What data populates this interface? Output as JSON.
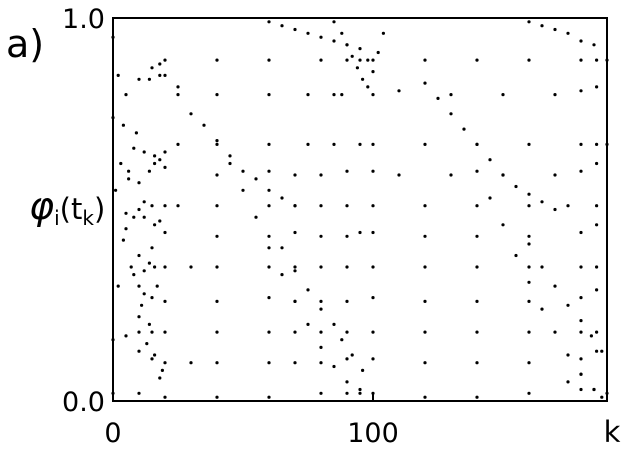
{
  "chart_data": {
    "type": "scatter",
    "panel_label": "a)",
    "title": "",
    "xlabel": "k",
    "ylabel": "φi(tk)",
    "ylabel_parts": {
      "symbol": "φ",
      "sub1": "i",
      "open": "(",
      "t": "t",
      "sub2": "k",
      "close": ")"
    },
    "xlim": [
      0,
      190
    ],
    "ylim": [
      0.0,
      1.0
    ],
    "x_ticks": [
      {
        "value": 0,
        "label": "0"
      },
      {
        "value": 100,
        "label": "100"
      }
    ],
    "y_ticks": [
      {
        "value": 0.0,
        "label": "0.0"
      },
      {
        "value": 1.0,
        "label": "1.0"
      }
    ],
    "grid": false,
    "marker_color": "#000000",
    "series": [
      {
        "x": [
          0,
          5,
          10,
          15,
          18,
          20,
          40,
          60,
          80,
          90,
          95,
          98,
          100,
          120,
          140,
          160,
          180,
          186,
          190
        ],
        "y": [
          0.74,
          0.8,
          0.84,
          0.87,
          0.88,
          0.89,
          0.89,
          0.89,
          0.89,
          0.89,
          0.89,
          0.89,
          0.89,
          0.89,
          0.89,
          0.89,
          0.89,
          0.89,
          0.89
        ]
      },
      {
        "x": [
          14,
          18,
          25,
          40,
          60,
          75,
          85,
          88,
          100,
          110,
          130,
          150,
          170,
          180,
          186
        ],
        "y": [
          0.84,
          0.85,
          0.82,
          0.8,
          0.8,
          0.8,
          0.8,
          0.8,
          0.8,
          0.81,
          0.8,
          0.8,
          0.8,
          0.81,
          0.82
        ]
      },
      {
        "x": [
          10,
          14,
          18,
          20,
          25,
          40,
          60,
          75,
          85,
          95,
          100,
          120,
          140,
          160,
          180,
          186,
          190
        ],
        "y": [
          0.57,
          0.6,
          0.63,
          0.65,
          0.67,
          0.67,
          0.67,
          0.67,
          0.67,
          0.67,
          0.67,
          0.67,
          0.67,
          0.67,
          0.67,
          0.67,
          0.67
        ]
      },
      {
        "x": [
          12,
          16,
          20,
          40,
          60,
          70,
          80,
          90,
          100,
          110,
          130,
          150,
          170,
          180,
          186
        ],
        "y": [
          0.65,
          0.64,
          0.61,
          0.59,
          0.6,
          0.59,
          0.59,
          0.6,
          0.6,
          0.59,
          0.59,
          0.59,
          0.59,
          0.6,
          0.62
        ]
      },
      {
        "x": [
          5,
          10,
          15,
          20,
          25,
          40,
          60,
          70,
          80,
          90,
          100,
          120,
          140,
          160,
          175,
          186
        ],
        "y": [
          0.49,
          0.5,
          0.51,
          0.51,
          0.51,
          0.51,
          0.51,
          0.51,
          0.51,
          0.51,
          0.51,
          0.51,
          0.51,
          0.51,
          0.51,
          0.51
        ]
      },
      {
        "x": [
          12,
          16,
          20,
          40,
          60,
          70,
          80,
          90,
          95,
          100,
          120,
          140,
          160,
          180,
          186
        ],
        "y": [
          0.48,
          0.46,
          0.44,
          0.43,
          0.43,
          0.44,
          0.43,
          0.43,
          0.44,
          0.44,
          0.43,
          0.43,
          0.43,
          0.44,
          0.46
        ]
      },
      {
        "x": [
          8,
          12,
          16,
          20,
          30,
          40,
          60,
          70,
          80,
          90,
          100,
          120,
          140,
          160,
          180,
          186
        ],
        "y": [
          0.33,
          0.34,
          0.35,
          0.35,
          0.35,
          0.35,
          0.35,
          0.35,
          0.35,
          0.35,
          0.35,
          0.35,
          0.35,
          0.35,
          0.35,
          0.35
        ]
      },
      {
        "x": [
          10,
          15,
          20,
          40,
          60,
          70,
          80,
          90,
          100,
          120,
          140,
          160,
          180,
          186
        ],
        "y": [
          0.3,
          0.27,
          0.26,
          0.26,
          0.27,
          0.26,
          0.26,
          0.26,
          0.27,
          0.26,
          0.26,
          0.26,
          0.27,
          0.29
        ]
      },
      {
        "x": [
          0,
          5,
          10,
          15,
          20,
          40,
          60,
          70,
          80,
          90,
          100,
          120,
          140,
          160,
          180,
          186
        ],
        "y": [
          0.16,
          0.17,
          0.18,
          0.18,
          0.18,
          0.18,
          0.18,
          0.18,
          0.18,
          0.18,
          0.18,
          0.18,
          0.18,
          0.18,
          0.18,
          0.18
        ]
      },
      {
        "x": [
          10,
          15,
          20,
          30,
          40,
          60,
          70,
          80,
          90,
          100,
          120,
          140,
          160,
          180,
          186
        ],
        "y": [
          0.13,
          0.11,
          0.1,
          0.1,
          0.1,
          0.1,
          0.1,
          0.1,
          0.11,
          0.11,
          0.1,
          0.1,
          0.1,
          0.11,
          0.13
        ]
      },
      {
        "x": [
          0,
          10,
          20,
          40,
          60,
          80,
          90,
          95,
          100,
          120,
          140,
          160,
          180,
          190
        ],
        "y": [
          0.02,
          0.02,
          0.01,
          0.01,
          0.01,
          0.02,
          0.02,
          0.03,
          0.02,
          0.01,
          0.01,
          0.02,
          0.03,
          0.02
        ]
      },
      {
        "x": [
          20,
          25,
          30,
          35,
          40,
          45,
          50,
          55,
          60,
          65,
          70,
          120,
          125,
          130,
          135,
          140,
          145,
          150,
          155,
          160,
          165,
          170
        ],
        "y": [
          0.85,
          0.8,
          0.75,
          0.72,
          0.68,
          0.64,
          0.6,
          0.58,
          0.55,
          0.53,
          0.51,
          0.83,
          0.79,
          0.75,
          0.71,
          0.67,
          0.63,
          0.59,
          0.56,
          0.54,
          0.52,
          0.5
        ]
      },
      {
        "x": [
          45,
          50,
          55,
          60,
          65,
          70,
          75,
          80,
          85,
          90,
          95,
          140,
          145,
          150,
          155,
          160,
          165,
          170,
          175,
          180,
          185
        ],
        "y": [
          0.62,
          0.55,
          0.48,
          0.4,
          0.33,
          0.26,
          0.2,
          0.14,
          0.09,
          0.05,
          0.02,
          0.6,
          0.53,
          0.46,
          0.38,
          0.31,
          0.24,
          0.18,
          0.12,
          0.07,
          0.03
        ]
      },
      {
        "x": [
          65,
          70,
          75,
          80,
          85,
          88,
          92,
          96,
          160,
          165,
          170,
          175,
          180,
          184,
          188
        ],
        "y": [
          0.4,
          0.34,
          0.29,
          0.24,
          0.2,
          0.16,
          0.12,
          0.08,
          0.41,
          0.35,
          0.3,
          0.25,
          0.21,
          0.17,
          0.13
        ]
      },
      {
        "x": [
          0,
          2,
          4,
          6,
          8,
          10,
          12,
          14,
          16,
          18
        ],
        "y": [
          0.95,
          0.85,
          0.72,
          0.6,
          0.48,
          0.38,
          0.28,
          0.2,
          0.12,
          0.06
        ]
      },
      {
        "x": [
          1,
          3,
          5,
          7,
          9,
          11,
          13,
          15,
          17,
          19
        ],
        "y": [
          0.55,
          0.62,
          0.45,
          0.35,
          0.7,
          0.25,
          0.15,
          0.4,
          0.3,
          0.08
        ]
      },
      {
        "x": [
          2,
          4,
          6,
          8,
          10,
          12,
          14,
          16,
          18
        ],
        "y": [
          0.3,
          0.42,
          0.58,
          0.66,
          0.22,
          0.52,
          0.36,
          0.62,
          0.47
        ]
      },
      {
        "x": [
          85,
          88,
          90,
          92,
          94,
          96,
          98,
          100,
          102,
          104
        ],
        "y": [
          0.99,
          0.96,
          0.93,
          0.9,
          0.87,
          0.84,
          0.82,
          0.86,
          0.91,
          0.96
        ]
      },
      {
        "x": [
          60,
          65,
          70,
          75,
          80,
          85,
          90,
          95
        ],
        "y": [
          0.99,
          0.98,
          0.97,
          0.96,
          0.95,
          0.94,
          0.93,
          0.92
        ]
      },
      {
        "x": [
          160,
          165,
          170,
          175,
          180,
          185
        ],
        "y": [
          0.99,
          0.98,
          0.97,
          0.96,
          0.94,
          0.93
        ]
      },
      {
        "x": [
          175,
          180,
          185,
          188
        ],
        "y": [
          0.05,
          0.07,
          0.03,
          0.01
        ]
      }
    ]
  }
}
